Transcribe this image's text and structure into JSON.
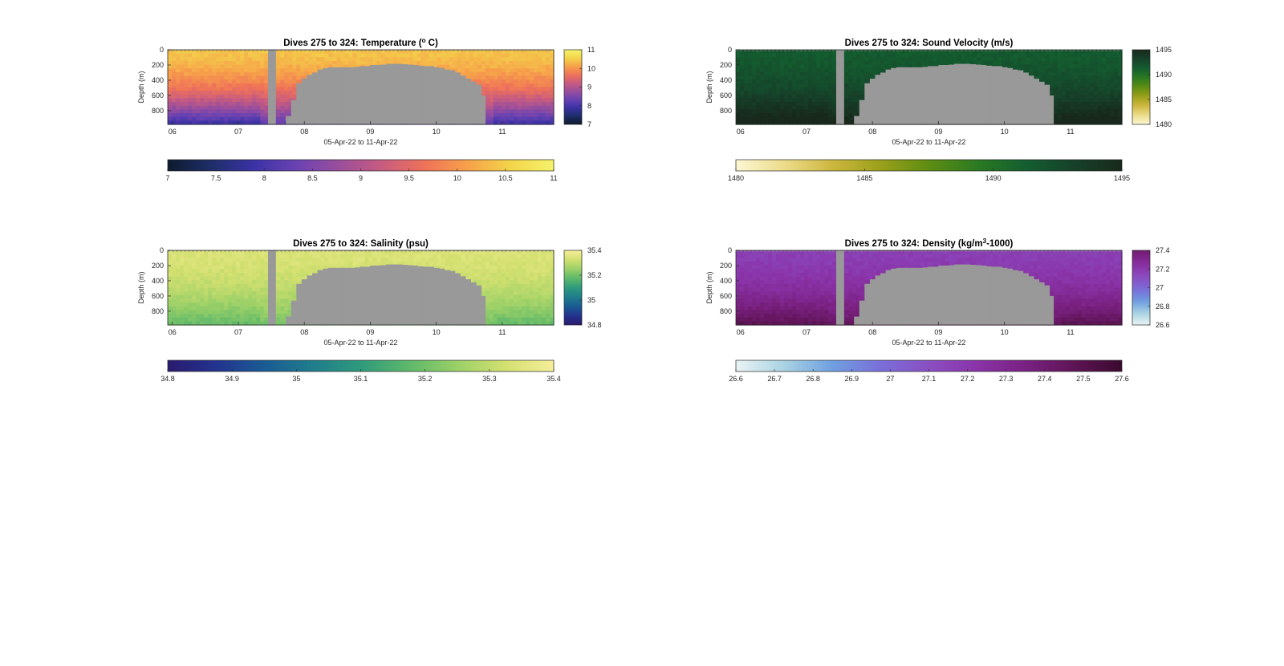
{
  "figure": {
    "background": "#ffffff",
    "mask_color": "#999999"
  },
  "chart_data": [
    {
      "type": "heatmap",
      "id": "temperature",
      "title": "Dives 275 to 324: Temperature (",
      "title_sup": "o",
      "title_tail": " C)",
      "xlabel": "05-Apr-22 to 11-Apr-22",
      "ylabel": "Depth (m)",
      "xlim": [
        5.93,
        11.78
      ],
      "ylim": [
        0,
        980
      ],
      "x_ticks": [
        6,
        7,
        8,
        9,
        10,
        11
      ],
      "x_tick_labels": [
        "06",
        "07",
        "08",
        "09",
        "10",
        "11"
      ],
      "y_ticks": [
        0,
        200,
        400,
        600,
        800
      ],
      "y_tick_labels": [
        "0",
        "200",
        "400",
        "600",
        "800"
      ],
      "surface_value": 10.4,
      "deep_value": 8.3,
      "side_colorbar": {
        "ticks": [
          "11",
          "10",
          "9",
          "8",
          "7"
        ],
        "values": [
          11,
          10,
          9,
          8,
          7
        ]
      },
      "bottom_colorbar": {
        "min": 7,
        "max": 11,
        "ticks": [
          "7",
          "7.5",
          "8",
          "8.5",
          "9",
          "9.5",
          "10",
          "10.5",
          "11"
        ],
        "values": [
          7,
          7.5,
          8,
          8.5,
          9,
          9.5,
          10,
          10.5,
          11
        ]
      },
      "colormap": [
        "#0d1a2e",
        "#1e2e68",
        "#3a32a6",
        "#6a42b2",
        "#9a4e9c",
        "#c85c80",
        "#ef7259",
        "#f7a14a",
        "#f3d54a",
        "#f5f26a"
      ]
    },
    {
      "type": "heatmap",
      "id": "sound_velocity",
      "title": "Dives 275 to 324: Sound Velocity (m/s)",
      "xlabel": "05-Apr-22 to 11-Apr-22",
      "ylabel": "Depth (m)",
      "xlim": [
        5.93,
        11.78
      ],
      "ylim": [
        0,
        980
      ],
      "x_ticks": [
        6,
        7,
        8,
        9,
        10,
        11
      ],
      "x_tick_labels": [
        "06",
        "07",
        "08",
        "09",
        "10",
        "11"
      ],
      "y_ticks": [
        0,
        200,
        400,
        600,
        800
      ],
      "y_tick_labels": [
        "0",
        "200",
        "400",
        "600",
        "800"
      ],
      "surface_value": 1491.5,
      "deep_value": 1495,
      "side_colorbar": {
        "ticks": [
          "1495",
          "1490",
          "1485",
          "1480"
        ],
        "values": [
          1495,
          1490,
          1485,
          1480
        ]
      },
      "bottom_colorbar": {
        "min": 1480,
        "max": 1495,
        "ticks": [
          "1480",
          "1485",
          "1490",
          "1495"
        ],
        "values": [
          1480,
          1485,
          1490,
          1495
        ]
      },
      "colormap": [
        "#fdf7d4",
        "#ecdc8a",
        "#cdb73f",
        "#9aa01a",
        "#5e8d12",
        "#2b7a22",
        "#145e30",
        "#16412a",
        "#18291c"
      ]
    },
    {
      "type": "heatmap",
      "id": "salinity",
      "title": "Dives 275 to 324: Salinity (psu)",
      "xlabel": "05-Apr-22 to 11-Apr-22",
      "ylabel": "Depth (m)",
      "xlim": [
        5.93,
        11.78
      ],
      "ylim": [
        0,
        980
      ],
      "x_ticks": [
        6,
        7,
        8,
        9,
        10,
        11
      ],
      "x_tick_labels": [
        "06",
        "07",
        "08",
        "09",
        "10",
        "11"
      ],
      "y_ticks": [
        0,
        200,
        400,
        600,
        800
      ],
      "y_tick_labels": [
        "0",
        "200",
        "400",
        "600",
        "800"
      ],
      "surface_value": 35.34,
      "deep_value": 35.21,
      "side_colorbar": {
        "ticks": [
          "35.4",
          "35.2",
          "35",
          "34.8"
        ],
        "values": [
          35.4,
          35.2,
          35,
          34.8
        ]
      },
      "bottom_colorbar": {
        "min": 34.8,
        "max": 35.4,
        "ticks": [
          "34.8",
          "34.9",
          "35",
          "35.1",
          "35.2",
          "35.3",
          "35.4"
        ],
        "values": [
          34.8,
          34.9,
          35,
          35.1,
          35.2,
          35.3,
          35.4
        ]
      },
      "colormap": [
        "#2a1a6e",
        "#23338f",
        "#1a5b93",
        "#1f7d8c",
        "#2f9a7c",
        "#5db86a",
        "#9bd068",
        "#d3e070",
        "#f6ee9a"
      ]
    },
    {
      "type": "heatmap",
      "id": "density",
      "title": "Dives 275 to 324: Density (kg/m",
      "title_sup": "3",
      "title_tail": "-1000)",
      "xlabel": "05-Apr-22 to 11-Apr-22",
      "ylabel": "Depth (m)",
      "xlim": [
        5.93,
        11.78
      ],
      "ylim": [
        0,
        980
      ],
      "x_ticks": [
        6,
        7,
        8,
        9,
        10,
        11
      ],
      "x_tick_labels": [
        "06",
        "07",
        "08",
        "09",
        "10",
        "11"
      ],
      "y_ticks": [
        0,
        200,
        400,
        600,
        800
      ],
      "y_tick_labels": [
        "0",
        "200",
        "400",
        "600",
        "800"
      ],
      "surface_value": 27.17,
      "deep_value": 27.43,
      "side_colorbar": {
        "ticks": [
          "27.4",
          "27.2",
          "27",
          "26.8",
          "26.6"
        ],
        "values": [
          27.4,
          27.2,
          27,
          26.8,
          26.6
        ]
      },
      "bottom_colorbar": {
        "min": 26.6,
        "max": 27.6,
        "ticks": [
          "26.6",
          "26.7",
          "26.8",
          "26.9",
          "27",
          "27.1",
          "27.2",
          "27.3",
          "27.4",
          "27.5",
          "27.6"
        ],
        "values": [
          26.6,
          26.7,
          26.8,
          26.9,
          27,
          27.1,
          27.2,
          27.3,
          27.4,
          27.5,
          27.6
        ]
      },
      "colormap": [
        "#eaf3f4",
        "#a9d3e3",
        "#6f9fe0",
        "#7a6fd9",
        "#8a4fc2",
        "#8a33a8",
        "#7a2182",
        "#5e1455",
        "#3a0a2e"
      ]
    }
  ],
  "data_gap": {
    "x_start": 7.45,
    "x_end": 7.57
  },
  "no_data_region": {
    "x": [
      7.65,
      7.72,
      7.8,
      7.88,
      7.96,
      8.04,
      8.12,
      8.2,
      8.28,
      8.36,
      8.44,
      8.52,
      8.6,
      8.68,
      8.76,
      8.84,
      8.92,
      9.0,
      9.08,
      9.16,
      9.24,
      9.32,
      9.4,
      9.48,
      9.56,
      9.64,
      9.72,
      9.8,
      9.88,
      9.96,
      10.04,
      10.12,
      10.2,
      10.28,
      10.36,
      10.44,
      10.52,
      10.6,
      10.68,
      10.74
    ],
    "top_depth": [
      980,
      870,
      660,
      440,
      380,
      330,
      300,
      260,
      240,
      230,
      230,
      230,
      230,
      230,
      225,
      215,
      215,
      200,
      200,
      195,
      185,
      185,
      185,
      190,
      195,
      200,
      210,
      215,
      215,
      230,
      240,
      260,
      270,
      300,
      340,
      380,
      420,
      460,
      600,
      980
    ]
  }
}
